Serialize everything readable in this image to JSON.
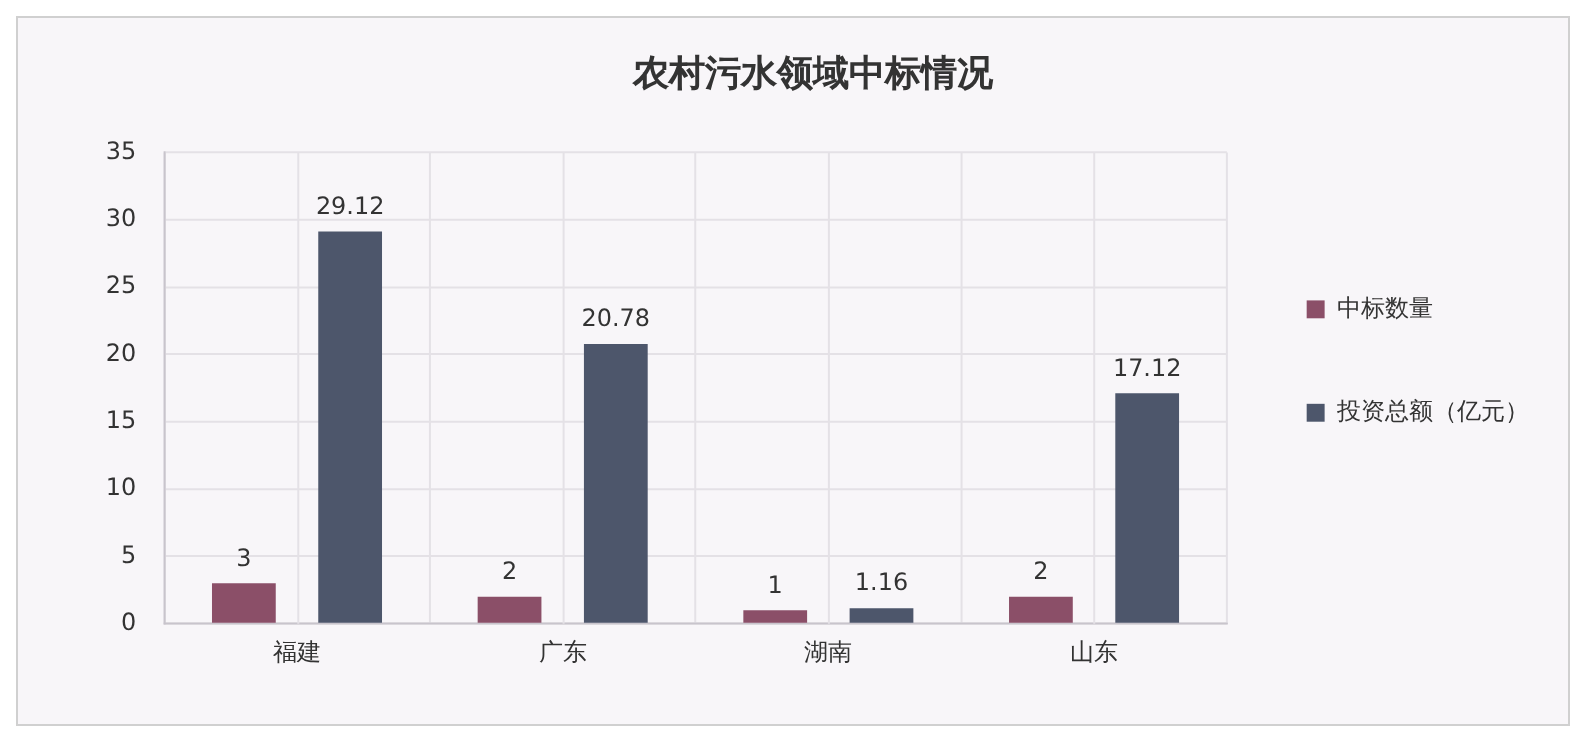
{
  "chart_data": {
    "type": "bar",
    "title": "农村污水领域中标情况",
    "categories": [
      "福建",
      "广东",
      "湖南",
      "山东"
    ],
    "series": [
      {
        "name": "中标数量",
        "color": "#8b4f68",
        "values": [
          3,
          2,
          1,
          2
        ]
      },
      {
        "name": "投资总额（亿元）",
        "color": "#4d566b",
        "values": [
          29.12,
          20.78,
          1.16,
          17.12
        ]
      }
    ],
    "ylim": [
      0,
      35
    ],
    "yticks": [
      0,
      5,
      10,
      15,
      20,
      25,
      30,
      35
    ],
    "grid": true,
    "legend": "right",
    "data_labels": true
  }
}
